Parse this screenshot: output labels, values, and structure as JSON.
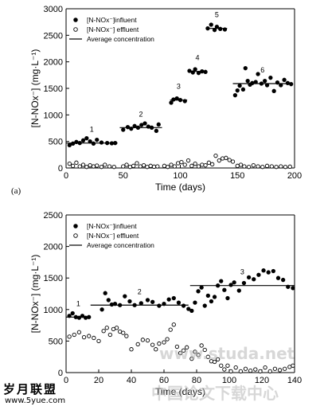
{
  "panel_a_label": "(a)",
  "watermark": {
    "logo_text": "岁月联盟",
    "site_text": "www.5yue.com",
    "faint_url": "www.studa.net",
    "faint_cjk": "中国论文下载中心"
  },
  "chart_data": [
    {
      "type": "scatter",
      "title": "",
      "xlabel": "Time (days)",
      "ylabel": "[N-NOx⁻] (mg·L⁻¹)",
      "xlim": [
        0,
        200
      ],
      "ylim": [
        0,
        3000
      ],
      "xticks": [
        0,
        50,
        100,
        150,
        200
      ],
      "yticks": [
        0,
        500,
        1000,
        1500,
        2000,
        2500,
        3000
      ],
      "legend_position": "top-left",
      "legend": [
        {
          "label": "[N-NOx⁻]influent",
          "marker": "filled-circle"
        },
        {
          "label": "[N-NOx⁻] effluent",
          "marker": "open-circle"
        },
        {
          "label": "Average concentration",
          "marker": "line"
        }
      ],
      "series": [
        {
          "name": "[N-NOx⁻]influent",
          "marker": "filled",
          "points": [
            [
              3,
              430
            ],
            [
              6,
              460
            ],
            [
              9,
              490
            ],
            [
              12,
              470
            ],
            [
              15,
              520
            ],
            [
              18,
              560
            ],
            [
              21,
              500
            ],
            [
              24,
              460
            ],
            [
              27,
              530
            ],
            [
              31,
              480
            ],
            [
              36,
              470
            ],
            [
              40,
              465
            ],
            [
              43,
              470
            ],
            [
              50,
              720
            ],
            [
              54,
              770
            ],
            [
              57,
              740
            ],
            [
              60,
              790
            ],
            [
              63,
              760
            ],
            [
              66,
              810
            ],
            [
              69,
              840
            ],
            [
              72,
              780
            ],
            [
              75,
              760
            ],
            [
              79,
              700
            ],
            [
              81,
              820
            ],
            [
              92,
              1230
            ],
            [
              94,
              1290
            ],
            [
              97,
              1310
            ],
            [
              100,
              1280
            ],
            [
              104,
              1260
            ],
            [
              108,
              1830
            ],
            [
              111,
              1800
            ],
            [
              113,
              1860
            ],
            [
              116,
              1790
            ],
            [
              119,
              1820
            ],
            [
              122,
              1810
            ],
            [
              124,
              2630
            ],
            [
              127,
              2700
            ],
            [
              130,
              2600
            ],
            [
              132,
              2660
            ],
            [
              135,
              2620
            ],
            [
              139,
              2610
            ],
            [
              148,
              1370
            ],
            [
              150,
              1460
            ],
            [
              152,
              1550
            ],
            [
              155,
              1480
            ],
            [
              157,
              1880
            ],
            [
              159,
              1640
            ],
            [
              161,
              1570
            ],
            [
              163,
              1600
            ],
            [
              166,
              1620
            ],
            [
              168,
              1770
            ],
            [
              171,
              1590
            ],
            [
              174,
              1640
            ],
            [
              176,
              1560
            ],
            [
              179,
              1700
            ],
            [
              182,
              1450
            ],
            [
              185,
              1610
            ],
            [
              188,
              1560
            ],
            [
              191,
              1660
            ],
            [
              194,
              1600
            ],
            [
              197,
              1580
            ]
          ]
        },
        {
          "name": "[N-NOx⁻] effluent",
          "marker": "open",
          "points": [
            [
              3,
              80
            ],
            [
              6,
              40
            ],
            [
              9,
              100
            ],
            [
              12,
              30
            ],
            [
              15,
              60
            ],
            [
              18,
              20
            ],
            [
              21,
              50
            ],
            [
              24,
              30
            ],
            [
              27,
              45
            ],
            [
              31,
              20
            ],
            [
              34,
              60
            ],
            [
              38,
              30
            ],
            [
              42,
              20
            ],
            [
              50,
              30
            ],
            [
              53,
              60
            ],
            [
              56,
              20
            ],
            [
              59,
              40
            ],
            [
              62,
              90
            ],
            [
              65,
              30
            ],
            [
              68,
              50
            ],
            [
              71,
              20
            ],
            [
              74,
              40
            ],
            [
              77,
              25
            ],
            [
              80,
              30
            ],
            [
              86,
              40
            ],
            [
              89,
              20
            ],
            [
              92,
              60
            ],
            [
              95,
              30
            ],
            [
              98,
              90
            ],
            [
              101,
              110
            ],
            [
              104,
              60
            ],
            [
              107,
              140
            ],
            [
              110,
              40
            ],
            [
              113,
              80
            ],
            [
              116,
              30
            ],
            [
              119,
              60
            ],
            [
              122,
              50
            ],
            [
              125,
              100
            ],
            [
              128,
              70
            ],
            [
              131,
              230
            ],
            [
              134,
              140
            ],
            [
              137,
              180
            ],
            [
              140,
              190
            ],
            [
              143,
              150
            ],
            [
              146,
              120
            ],
            [
              150,
              40
            ],
            [
              153,
              60
            ],
            [
              156,
              30
            ],
            [
              160,
              20
            ],
            [
              164,
              50
            ],
            [
              168,
              30
            ],
            [
              172,
              20
            ],
            [
              176,
              40
            ],
            [
              180,
              30
            ],
            [
              184,
              20
            ],
            [
              188,
              30
            ],
            [
              192,
              20
            ],
            [
              196,
              25
            ]
          ]
        }
      ],
      "averages": [
        {
          "label": "1",
          "x": [
            0,
            45
          ],
          "y": 470
        },
        {
          "label": "2",
          "x": [
            47,
            84
          ],
          "y": 760
        },
        {
          "label": "3",
          "x": [
            91,
            106
          ],
          "y": 1280
        },
        {
          "label": "4",
          "x": [
            107,
            123
          ],
          "y": 1820
        },
        {
          "label": "5",
          "x": [
            123,
            141
          ],
          "y": 2630
        },
        {
          "label": "6",
          "x": [
            146,
            198
          ],
          "y": 1590
        }
      ]
    },
    {
      "type": "scatter",
      "title": "",
      "xlabel": "Time (days)",
      "ylabel": "[N-NOx⁻] (mg·L⁻¹)",
      "xlim": [
        0,
        140
      ],
      "ylim": [
        0,
        2500
      ],
      "xticks": [
        0,
        20,
        40,
        60,
        80,
        100,
        120,
        140
      ],
      "yticks": [
        0,
        500,
        1000,
        1500,
        2000,
        2500
      ],
      "legend_position": "top-left",
      "legend": [
        {
          "label": "[N-NOx⁻]influent",
          "marker": "filled-circle"
        },
        {
          "label": "[N-NOx⁻] effluent",
          "marker": "open-circle"
        },
        {
          "label": "Average concentration",
          "marker": "line"
        }
      ],
      "series": [
        {
          "name": "[N-NOx⁻]influent",
          "marker": "filled",
          "points": [
            [
              2,
              900
            ],
            [
              4,
              940
            ],
            [
              6,
              880
            ],
            [
              8,
              870
            ],
            [
              10,
              900
            ],
            [
              12,
              870
            ],
            [
              14,
              880
            ],
            [
              22,
              1000
            ],
            [
              24,
              1260
            ],
            [
              26,
              1150
            ],
            [
              28,
              1080
            ],
            [
              30,
              1090
            ],
            [
              33,
              1070
            ],
            [
              36,
              1210
            ],
            [
              39,
              1130
            ],
            [
              42,
              1070
            ],
            [
              46,
              1100
            ],
            [
              50,
              1150
            ],
            [
              53,
              1120
            ],
            [
              57,
              1060
            ],
            [
              60,
              1090
            ],
            [
              63,
              1160
            ],
            [
              66,
              1180
            ],
            [
              69,
              1110
            ],
            [
              72,
              1060
            ],
            [
              75,
              1010
            ],
            [
              77,
              980
            ],
            [
              79,
              1110
            ],
            [
              81,
              1290
            ],
            [
              83,
              1350
            ],
            [
              85,
              1060
            ],
            [
              87,
              1220
            ],
            [
              89,
              1130
            ],
            [
              91,
              1200
            ],
            [
              93,
              1380
            ],
            [
              95,
              1450
            ],
            [
              97,
              1310
            ],
            [
              99,
              1180
            ],
            [
              101,
              1390
            ],
            [
              103,
              1430
            ],
            [
              106,
              1300
            ],
            [
              109,
              1420
            ],
            [
              112,
              1510
            ],
            [
              115,
              1480
            ],
            [
              118,
              1550
            ],
            [
              121,
              1620
            ],
            [
              124,
              1590
            ],
            [
              127,
              1610
            ],
            [
              130,
              1500
            ],
            [
              133,
              1470
            ],
            [
              136,
              1360
            ],
            [
              139,
              1340
            ]
          ]
        },
        {
          "name": "[N-NOx⁻] effluent",
          "marker": "open",
          "points": [
            [
              2,
              570
            ],
            [
              5,
              600
            ],
            [
              8,
              640
            ],
            [
              11,
              560
            ],
            [
              14,
              580
            ],
            [
              17,
              550
            ],
            [
              20,
              500
            ],
            [
              23,
              660
            ],
            [
              25,
              710
            ],
            [
              27,
              600
            ],
            [
              29,
              690
            ],
            [
              31,
              710
            ],
            [
              33,
              650
            ],
            [
              35,
              630
            ],
            [
              37,
              580
            ],
            [
              40,
              370
            ],
            [
              44,
              450
            ],
            [
              47,
              520
            ],
            [
              50,
              510
            ],
            [
              53,
              440
            ],
            [
              55,
              370
            ],
            [
              57,
              460
            ],
            [
              60,
              480
            ],
            [
              62,
              530
            ],
            [
              64,
              680
            ],
            [
              66,
              760
            ],
            [
              68,
              410
            ],
            [
              70,
              310
            ],
            [
              72,
              350
            ],
            [
              74,
              400
            ],
            [
              77,
              220
            ],
            [
              79,
              330
            ],
            [
              81,
              280
            ],
            [
              83,
              430
            ],
            [
              85,
              360
            ],
            [
              87,
              250
            ],
            [
              89,
              180
            ],
            [
              91,
              170
            ],
            [
              93,
              210
            ],
            [
              95,
              110
            ],
            [
              97,
              50
            ],
            [
              99,
              110
            ],
            [
              101,
              20
            ],
            [
              104,
              80
            ],
            [
              107,
              20
            ],
            [
              110,
              60
            ],
            [
              113,
              30
            ],
            [
              116,
              50
            ],
            [
              119,
              20
            ],
            [
              122,
              80
            ],
            [
              125,
              20
            ],
            [
              128,
              60
            ],
            [
              131,
              40
            ],
            [
              134,
              60
            ],
            [
              137,
              90
            ],
            [
              139,
              110
            ]
          ]
        }
      ],
      "averages": [
        {
          "label": "1",
          "x": [
            0,
            15
          ],
          "y": 880
        },
        {
          "label": "2",
          "x": [
            15,
            75
          ],
          "y": 1070
        },
        {
          "label": "3",
          "x": [
            76,
            140
          ],
          "y": 1380
        }
      ]
    }
  ]
}
